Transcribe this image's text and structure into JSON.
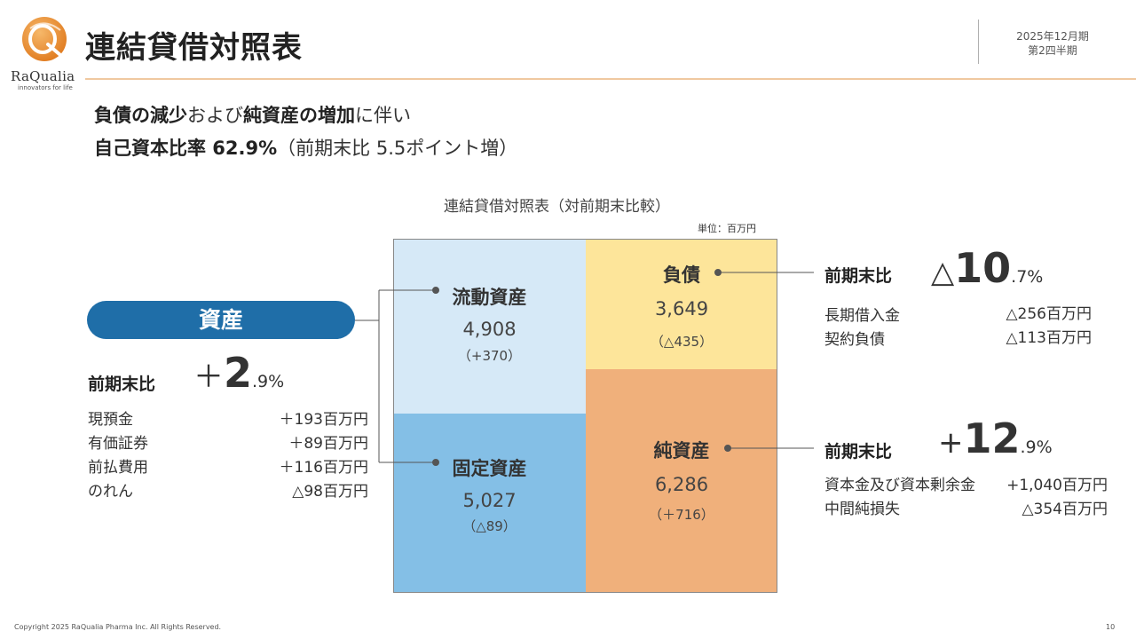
{
  "header": {
    "title": "連結貸借対照表",
    "period_line1": "2025年12月期",
    "period_line2": "第2四半期",
    "logo_name": "RaQualia",
    "logo_tagline": "innovators for life"
  },
  "lead": {
    "line1": [
      {
        "text": "負債の減少",
        "bold": true
      },
      {
        "text": "および",
        "bold": false
      },
      {
        "text": "純資産の増加",
        "bold": true
      },
      {
        "text": "に伴い",
        "bold": false
      }
    ],
    "line2": [
      {
        "text": "自己資本比率 62.9%",
        "bold": true
      },
      {
        "text": "（前期末比 5.5ポイント増）",
        "bold": false
      }
    ]
  },
  "chart_title": "連結貸借対照表（対前期末比較）",
  "unit": "単位：百万円",
  "balance": {
    "current_assets": {
      "name": "流動資産",
      "value": "4,908",
      "change": "（+370）"
    },
    "fixed_assets": {
      "name": "固定資産",
      "value": "5,027",
      "change": "（△89）"
    },
    "liabilities": {
      "name": "負債",
      "value": "3,649",
      "change": "（△435）"
    },
    "net_assets": {
      "name": "純資産",
      "value": "6,286",
      "change": "（＋716）"
    }
  },
  "assets": {
    "label": "資産",
    "cmp_label": "前期末比",
    "sign": "＋",
    "int": "2",
    "dec": ".9%",
    "details": [
      {
        "label": "現預金",
        "value": "＋193百万円"
      },
      {
        "label": "有価証券",
        "value": "＋89百万円"
      },
      {
        "label": "前払費用",
        "value": "＋116百万円"
      },
      {
        "label": "のれん",
        "value": "△98百万円"
      }
    ]
  },
  "liabilities_cmp": {
    "cmp_label": "前期末比",
    "sign": "△",
    "int": "10",
    "dec": ".7%",
    "details": [
      {
        "label": "長期借入金",
        "value": "△256百万円"
      },
      {
        "label": "契約負債",
        "value": "△113百万円"
      }
    ]
  },
  "net_assets_cmp": {
    "cmp_label": "前期末比",
    "sign": "+",
    "int": "12",
    "dec": ".9%",
    "details": [
      {
        "label": "資本金及び資本剰余金",
        "value": "+1,040百万円"
      },
      {
        "label": "中間純損失",
        "value": "△354百万円"
      }
    ]
  },
  "colors": {
    "current_assets": "#d6e9f7",
    "fixed_assets": "#84bfe6",
    "liabilities": "#fde59a",
    "net_assets": "#f0b07b",
    "pill": "#1f6ea8",
    "accent_line": "#f0c8a0"
  },
  "footer": {
    "copyright": "Copyright 2025 RaQualia Pharma Inc. All Rights Reserved.",
    "page": "10"
  }
}
